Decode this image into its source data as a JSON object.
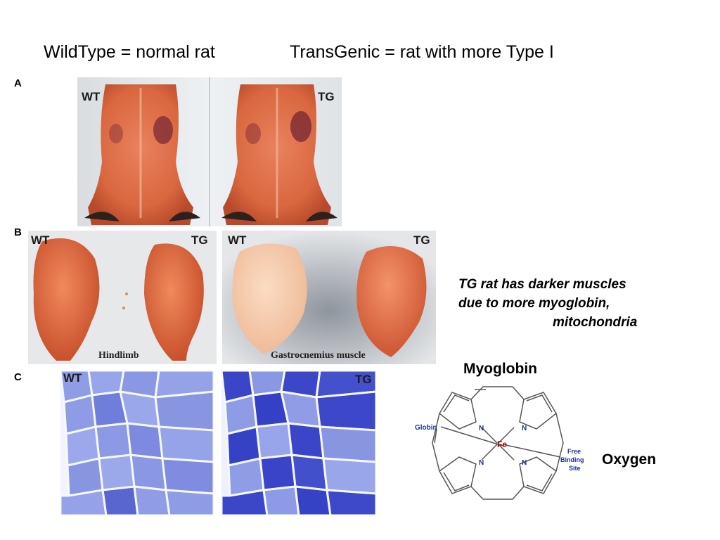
{
  "headings": {
    "wildtype": "WildType = normal rat",
    "transgenic": "TransGenic = rat with more Type I"
  },
  "panels": {
    "a": {
      "letter": "A",
      "left_label": "WT",
      "right_label": "TG"
    },
    "b": {
      "letter": "B",
      "hindlimb": {
        "left_label": "WT",
        "right_label": "TG",
        "caption": "Hindlimb"
      },
      "gastrocnemius": {
        "left_label": "WT",
        "right_label": "TG",
        "caption": "Gastrocnemius muscle"
      }
    },
    "c": {
      "letter": "C",
      "left_label": "WT",
      "right_label": "TG"
    }
  },
  "note": {
    "line1": "TG rat has darker muscles",
    "line2": "due to more myoglobin,",
    "line3": "mitochondria"
  },
  "myoglobin": {
    "title": "Myoglobin",
    "globin_label": "Globin",
    "iron_label": "Fe",
    "nitrogen_label": "N",
    "free_binding_site": [
      "Free",
      "Binding",
      "Site"
    ],
    "oxygen_label": "Oxygen"
  },
  "colors": {
    "muscle_red": "#d45a3a",
    "muscle_pale": "#f3c8a8",
    "stain_light": "#8e9ce6",
    "stain_dark": "#3b45c9",
    "iron_red": "#b00000",
    "nitrogen_blue": "#1f2f8f"
  }
}
